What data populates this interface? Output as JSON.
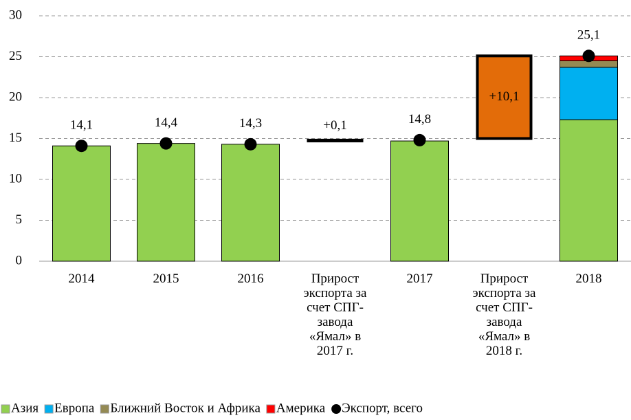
{
  "chart_data": {
    "type": "bar",
    "categories": [
      "2014",
      "2015",
      "2016",
      "Прирост\nэкспорта за\nсчет СПГ-\nзавода\n«Ямал» в\n2017 г.",
      "2017",
      "Прирост\nэкспорта за\nсчет СПГ-\nзавода\n«Ямал» в\n2018 г.",
      "2018"
    ],
    "series": [
      {
        "name": "Азия",
        "color": "#92d050",
        "values": [
          14.1,
          14.4,
          14.3,
          null,
          14.7,
          null,
          17.3
        ]
      },
      {
        "name": "Европа",
        "color": "#00b0f0",
        "values": [
          null,
          null,
          null,
          null,
          null,
          null,
          6.4
        ]
      },
      {
        "name": "Ближний Восток и Африка",
        "color": "#948a54",
        "values": [
          null,
          null,
          null,
          null,
          null,
          null,
          0.8
        ]
      },
      {
        "name": "Америка",
        "color": "#ff0000",
        "values": [
          null,
          null,
          null,
          null,
          null,
          null,
          0.6
        ]
      }
    ],
    "increments": {
      "color": "#e36c09",
      "values": [
        null,
        null,
        null,
        0.1,
        null,
        10.1,
        null
      ],
      "value_labels": [
        null,
        null,
        null,
        "+0,1",
        null,
        "+10,1",
        null
      ]
    },
    "total": {
      "name": "Экспорт, всего",
      "color": "#000000",
      "values": [
        14.1,
        14.4,
        14.3,
        null,
        14.8,
        null,
        25.1
      ],
      "value_labels": [
        "14,1",
        "14,4",
        "14,3",
        null,
        "14,8",
        null,
        "25,1"
      ]
    },
    "ylim": [
      0,
      30
    ],
    "yticks": [
      0,
      5,
      10,
      15,
      20,
      25,
      30
    ],
    "grid": true,
    "legend": "bottom"
  }
}
